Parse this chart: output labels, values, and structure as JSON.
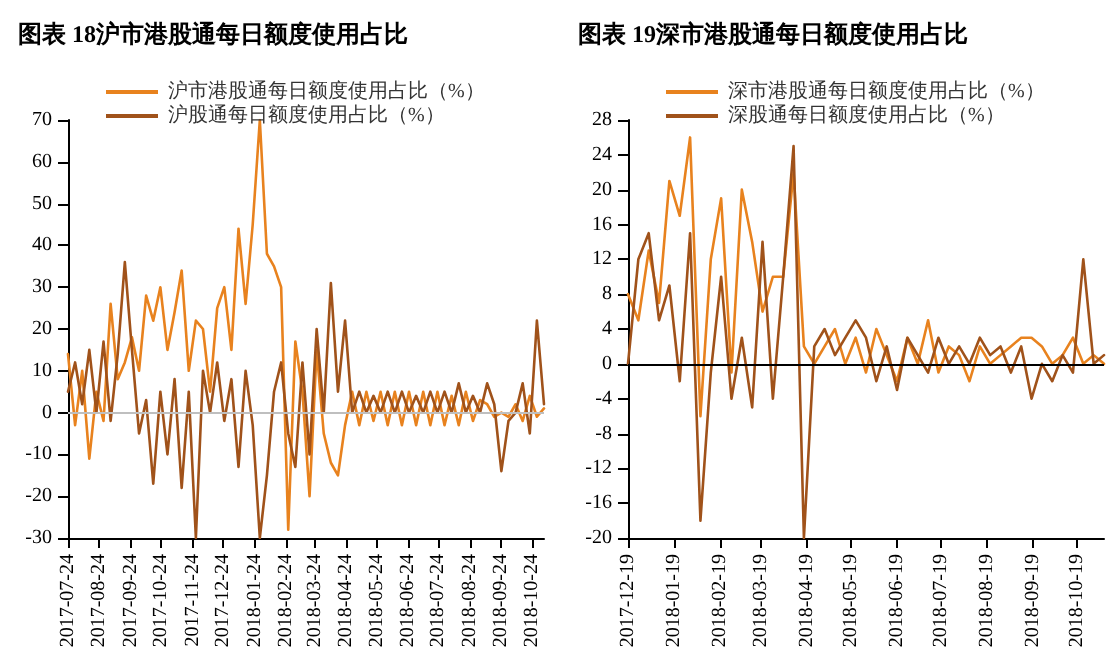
{
  "chart_data": [
    {
      "type": "line",
      "title": "图表 18沪市港股通每日额度使用占比",
      "legend": "top",
      "marker": "none",
      "line_style": "solid",
      "grid": false,
      "x": [
        "2017-07-24",
        "2017-07-31",
        "2017-08-07",
        "2017-08-14",
        "2017-08-21",
        "2017-08-28",
        "2017-09-04",
        "2017-09-11",
        "2017-09-18",
        "2017-09-25",
        "2017-10-02",
        "2017-10-09",
        "2017-10-16",
        "2017-10-23",
        "2017-10-30",
        "2017-11-06",
        "2017-11-13",
        "2017-11-20",
        "2017-11-27",
        "2017-12-04",
        "2017-12-11",
        "2017-12-18",
        "2017-12-25",
        "2018-01-01",
        "2018-01-08",
        "2018-01-15",
        "2018-01-22",
        "2018-01-29",
        "2018-02-05",
        "2018-02-12",
        "2018-02-19",
        "2018-02-26",
        "2018-03-05",
        "2018-03-12",
        "2018-03-19",
        "2018-03-26",
        "2018-04-02",
        "2018-04-09",
        "2018-04-16",
        "2018-04-23",
        "2018-04-30",
        "2018-05-07",
        "2018-05-14",
        "2018-05-21",
        "2018-05-28",
        "2018-06-04",
        "2018-06-11",
        "2018-06-18",
        "2018-06-25",
        "2018-07-02",
        "2018-07-09",
        "2018-07-16",
        "2018-07-23",
        "2018-07-30",
        "2018-08-06",
        "2018-08-13",
        "2018-08-20",
        "2018-08-27",
        "2018-09-03",
        "2018-09-10",
        "2018-09-17",
        "2018-09-24",
        "2018-10-01",
        "2018-10-08",
        "2018-10-15",
        "2018-10-22",
        "2018-10-29",
        "2018-11-05"
      ],
      "xlim": [
        "2017-07-24",
        "2018-11-05"
      ],
      "xticks": [
        "2017-07-24",
        "2017-08-24",
        "2017-09-24",
        "2017-10-24",
        "2017-11-24",
        "2017-12-24",
        "2018-01-24",
        "2018-02-24",
        "2018-03-24",
        "2018-04-24",
        "2018-05-24",
        "2018-06-24",
        "2018-07-24",
        "2018-08-24",
        "2018-09-24",
        "2018-10-24"
      ],
      "ylim": [
        -30,
        70
      ],
      "yticks": [
        -30,
        -20,
        -10,
        0,
        10,
        20,
        30,
        40,
        50,
        60,
        70
      ],
      "ref_lines": [
        {
          "axis": "y",
          "value": 0,
          "color": "#bfbfbf"
        }
      ],
      "series": [
        {
          "name": "沪市港股通每日额度使用占比（%）",
          "color": "#e8821e",
          "values": [
            14,
            -3,
            10,
            -11,
            5,
            -2,
            26,
            8,
            12,
            18,
            10,
            28,
            22,
            30,
            15,
            24,
            34,
            10,
            22,
            20,
            5,
            25,
            30,
            15,
            44,
            26,
            45,
            70,
            38,
            35,
            30,
            -28,
            17,
            5,
            -20,
            15,
            -5,
            -12,
            -15,
            -3,
            5,
            -3,
            5,
            -2,
            5,
            -3,
            5,
            -3,
            5,
            -3,
            5,
            -3,
            5,
            -3,
            4,
            -3,
            5,
            -2,
            3,
            2,
            -1,
            0,
            -1,
            2,
            -2,
            4,
            -1,
            1
          ]
        },
        {
          "name": "沪股通每日额度使用占比（%）",
          "color": "#a0521a",
          "values": [
            5,
            12,
            2,
            15,
            0,
            17,
            -2,
            14,
            36,
            15,
            -5,
            3,
            -17,
            5,
            -10,
            8,
            -18,
            5,
            -30,
            10,
            0,
            12,
            -2,
            8,
            -13,
            10,
            -3,
            -30,
            -15,
            5,
            12,
            -5,
            -13,
            12,
            -10,
            20,
            0,
            31,
            5,
            22,
            0,
            5,
            0,
            4,
            0,
            5,
            0,
            5,
            0,
            4,
            0,
            5,
            0,
            5,
            0,
            7,
            0,
            4,
            0,
            7,
            2,
            -14,
            -2,
            0,
            7,
            -5,
            22,
            2
          ]
        }
      ]
    },
    {
      "type": "line",
      "title": "图表 19深市港股通每日额度使用占比",
      "legend": "top",
      "marker": "none",
      "line_style": "solid",
      "grid": false,
      "x": [
        "2017-12-19",
        "2017-12-26",
        "2018-01-02",
        "2018-01-09",
        "2018-01-16",
        "2018-01-23",
        "2018-01-30",
        "2018-02-06",
        "2018-02-13",
        "2018-02-20",
        "2018-02-27",
        "2018-03-06",
        "2018-03-13",
        "2018-03-20",
        "2018-03-27",
        "2018-04-03",
        "2018-04-10",
        "2018-04-17",
        "2018-04-24",
        "2018-05-01",
        "2018-05-08",
        "2018-05-15",
        "2018-05-22",
        "2018-05-29",
        "2018-06-05",
        "2018-06-12",
        "2018-06-19",
        "2018-06-26",
        "2018-07-03",
        "2018-07-10",
        "2018-07-17",
        "2018-07-24",
        "2018-07-31",
        "2018-08-07",
        "2018-08-14",
        "2018-08-21",
        "2018-08-28",
        "2018-09-04",
        "2018-09-11",
        "2018-09-18",
        "2018-09-25",
        "2018-10-02",
        "2018-10-09",
        "2018-10-16",
        "2018-10-23",
        "2018-10-30",
        "2018-11-06"
      ],
      "xlim": [
        "2017-12-19",
        "2018-11-06"
      ],
      "xticks": [
        "2017-12-19",
        "2018-01-19",
        "2018-02-19",
        "2018-03-19",
        "2018-04-19",
        "2018-05-19",
        "2018-06-19",
        "2018-07-19",
        "2018-08-19",
        "2018-09-19",
        "2018-10-19"
      ],
      "ylim": [
        -20,
        28
      ],
      "yticks": [
        -20,
        -16,
        -12,
        -8,
        -4,
        0,
        4,
        8,
        12,
        16,
        20,
        24,
        28
      ],
      "ref_lines": [
        {
          "axis": "y",
          "value": 0,
          "color": "#000000"
        }
      ],
      "series": [
        {
          "name": "深市港股通每日额度使用占比（%）",
          "color": "#e8821e",
          "values": [
            8,
            5,
            13,
            7,
            21,
            17,
            26,
            -6,
            12,
            19,
            -1,
            20,
            14,
            6,
            10,
            10,
            22,
            2,
            0,
            2,
            4,
            0,
            3,
            -1,
            4,
            1,
            -2,
            3,
            0,
            5,
            -1,
            2,
            1,
            -2,
            2,
            0,
            1,
            2,
            3,
            3,
            2,
            0,
            1,
            3,
            0,
            1,
            0
          ]
        },
        {
          "name": "深股通每日额度使用占比（%）",
          "color": "#a0521a",
          "values": [
            0,
            12,
            15,
            5,
            9,
            -2,
            15,
            -18,
            -1,
            10,
            -4,
            3,
            -5,
            14,
            -4,
            10,
            25,
            -20,
            2,
            4,
            1,
            3,
            5,
            3,
            -2,
            2,
            -3,
            3,
            1,
            -1,
            3,
            0,
            2,
            0,
            3,
            1,
            2,
            -1,
            2,
            -4,
            0,
            -2,
            1,
            -1,
            12,
            0,
            1
          ]
        }
      ]
    }
  ]
}
